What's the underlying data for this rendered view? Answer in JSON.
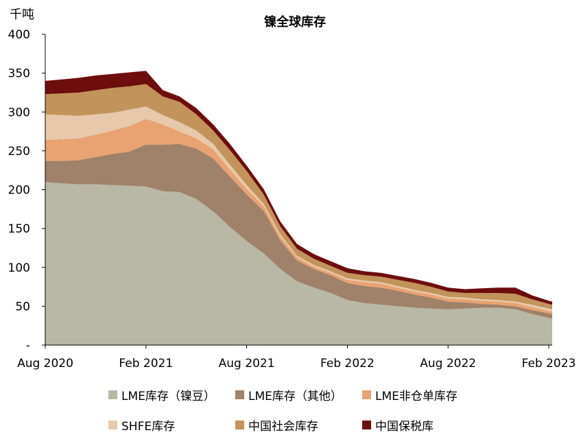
{
  "chart_data": {
    "type": "area",
    "stacked": true,
    "title": "镍全球库存",
    "ylabel": "千吨",
    "ylim": [
      0,
      400
    ],
    "yticks": [
      0,
      50,
      100,
      150,
      200,
      250,
      300,
      350,
      400
    ],
    "ytick_labels": [
      "-",
      "50",
      "100",
      "150",
      "200",
      "250",
      "300",
      "350",
      "400"
    ],
    "xticks": [
      {
        "label": "Aug 2020",
        "x": 2020.583
      },
      {
        "label": "Feb 2021",
        "x": 2021.083
      },
      {
        "label": "Aug 2021",
        "x": 2021.583
      },
      {
        "label": "Feb 2022",
        "x": 2022.083
      },
      {
        "label": "Aug 2022",
        "x": 2022.583
      },
      {
        "label": "Feb 2023",
        "x": 2023.083
      }
    ],
    "x": [
      2020.583,
      2020.667,
      2020.75,
      2020.833,
      2020.917,
      2021.0,
      2021.083,
      2021.167,
      2021.25,
      2021.333,
      2021.417,
      2021.5,
      2021.583,
      2021.667,
      2021.75,
      2021.833,
      2021.917,
      2022.0,
      2022.083,
      2022.167,
      2022.25,
      2022.333,
      2022.417,
      2022.5,
      2022.583,
      2022.667,
      2022.75,
      2022.833,
      2022.917,
      2023.0,
      2023.083,
      2023.1
    ],
    "series": [
      {
        "name": "LME库存（镍豆）",
        "color": "#b9b8a5",
        "values": [
          210,
          208,
          207,
          207,
          206,
          205,
          204,
          198,
          197,
          188,
          172,
          152,
          134,
          118,
          98,
          82,
          74,
          67,
          58,
          54,
          52,
          50,
          48,
          47,
          46,
          47,
          48,
          48,
          46,
          40,
          35,
          34
        ]
      },
      {
        "name": "LME库存（其他）",
        "color": "#a08169",
        "values": [
          27,
          29,
          31,
          35,
          40,
          44,
          54,
          60,
          62,
          65,
          68,
          65,
          60,
          55,
          37,
          27,
          24,
          23,
          22,
          22,
          22,
          20,
          17,
          14,
          10,
          8,
          5,
          4,
          4,
          5,
          6,
          6
        ]
      },
      {
        "name": "LME非仓单库存",
        "color": "#e9a271",
        "values": [
          27,
          28,
          28,
          29,
          30,
          33,
          33,
          26,
          16,
          13,
          12,
          9,
          7,
          6,
          5,
          4,
          3,
          3,
          4,
          5,
          5,
          4,
          4,
          4,
          4,
          4,
          4,
          4,
          4,
          4,
          3,
          3
        ]
      },
      {
        "name": "SHFE库存",
        "color": "#e7c8aa",
        "values": [
          33,
          31,
          29,
          26,
          23,
          21,
          16,
          12,
          12,
          10,
          7,
          6,
          5,
          3,
          3,
          2,
          2,
          2,
          2,
          2,
          2,
          2,
          2,
          2,
          2,
          2,
          2,
          2,
          2,
          3,
          3,
          3
        ]
      },
      {
        "name": "中国社会库存",
        "color": "#c2935a",
        "values": [
          26,
          28,
          30,
          31,
          32,
          30,
          29,
          24,
          26,
          21,
          17,
          19,
          18,
          12,
          10,
          9,
          8,
          7,
          7,
          7,
          7,
          8,
          9,
          8,
          7,
          6,
          8,
          9,
          10,
          7,
          6,
          6
        ]
      },
      {
        "name": "中国保税库",
        "color": "#6e0d0d",
        "values": [
          17,
          18,
          19,
          19,
          18,
          18,
          17,
          8,
          7,
          8,
          8,
          8,
          7,
          7,
          6,
          6,
          6,
          6,
          6,
          5,
          5,
          5,
          5,
          5,
          5,
          5,
          6,
          7,
          8,
          5,
          4,
          4
        ]
      }
    ],
    "legend_position": "bottom",
    "grid": false
  }
}
